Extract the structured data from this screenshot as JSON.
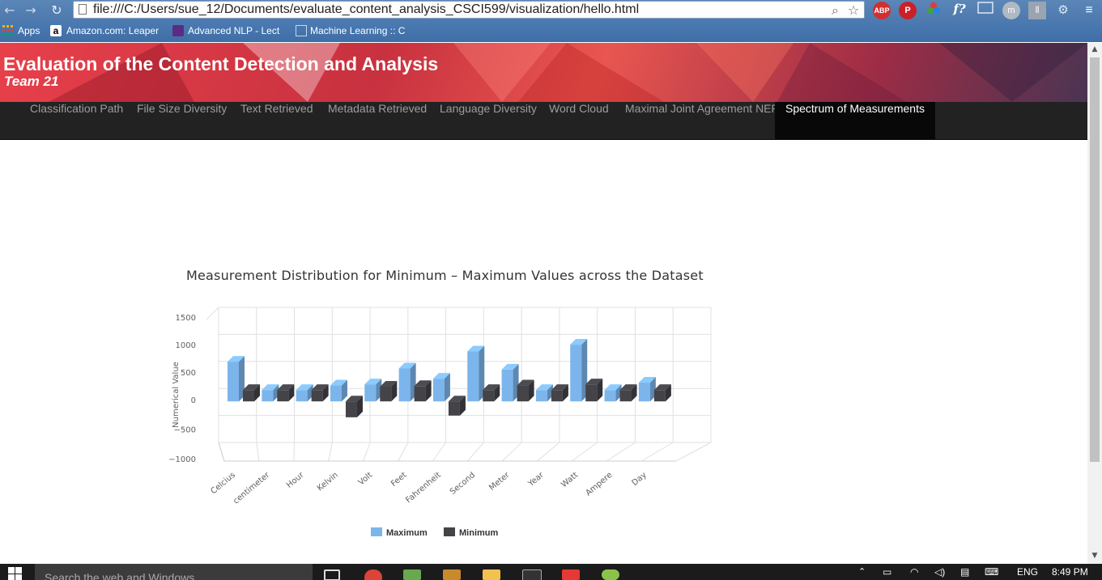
{
  "browser": {
    "url": "file:///C:/Users/sue_12/Documents/evaluate_content_analysis_CSCI599/visualization/hello.html",
    "bookmarks": [
      {
        "label": "Apps"
      },
      {
        "label": "Amazon.com: Leaper"
      },
      {
        "label": "Advanced NLP - Lect"
      },
      {
        "label": "Machine Learning :: C"
      }
    ],
    "extensions": [
      "ABP",
      "P",
      "f?"
    ]
  },
  "header": {
    "title": "Evaluation of the Content Detection and Analysis",
    "subtitle": "Team 21"
  },
  "nav": {
    "items": [
      {
        "label": "Classification Path"
      },
      {
        "label": "File Size Diversity"
      },
      {
        "label": "Text Retrieved"
      },
      {
        "label": "Metadata Retrieved"
      },
      {
        "label": "Language Diversity"
      },
      {
        "label": "Word Cloud"
      },
      {
        "label": "Maximal Joint Agreement NER"
      },
      {
        "label": "Spectrum of Measurements"
      }
    ],
    "active_index": 7
  },
  "chart_data": {
    "type": "bar",
    "title": "Measurement Distribution for Minimum – Maximum Values across the Dataset",
    "ylabel": "Numerical Value",
    "xlabel": "",
    "ylim": [
      -1000,
      1500
    ],
    "yticks": [
      "1500",
      "1000",
      "500",
      "0",
      "−500",
      "−1000"
    ],
    "ytick_values": [
      1500,
      1000,
      500,
      0,
      -500,
      -1000
    ],
    "categories": [
      "Celcius",
      "centimeter",
      "Hour",
      "Kelvin",
      "Volt",
      "Feet",
      "Fahrenheit",
      "Second",
      "Meter",
      "Year",
      "Watt",
      "Ampere",
      "Day"
    ],
    "series": [
      {
        "name": "Maximum",
        "color": "#7cb5ec",
        "values": [
          700,
          200,
          200,
          280,
          300,
          580,
          400,
          880,
          560,
          200,
          1000,
          200,
          330
        ]
      },
      {
        "name": "Minimum",
        "color": "#434348",
        "values": [
          200,
          200,
          200,
          -280,
          260,
          270,
          -250,
          200,
          280,
          200,
          300,
          200,
          200
        ]
      }
    ],
    "grid": true,
    "legend_position": "bottom-center",
    "style": "3d"
  },
  "taskbar": {
    "search_placeholder": "Search the web and Windows",
    "language": "ENG",
    "time": "8:49 PM"
  }
}
